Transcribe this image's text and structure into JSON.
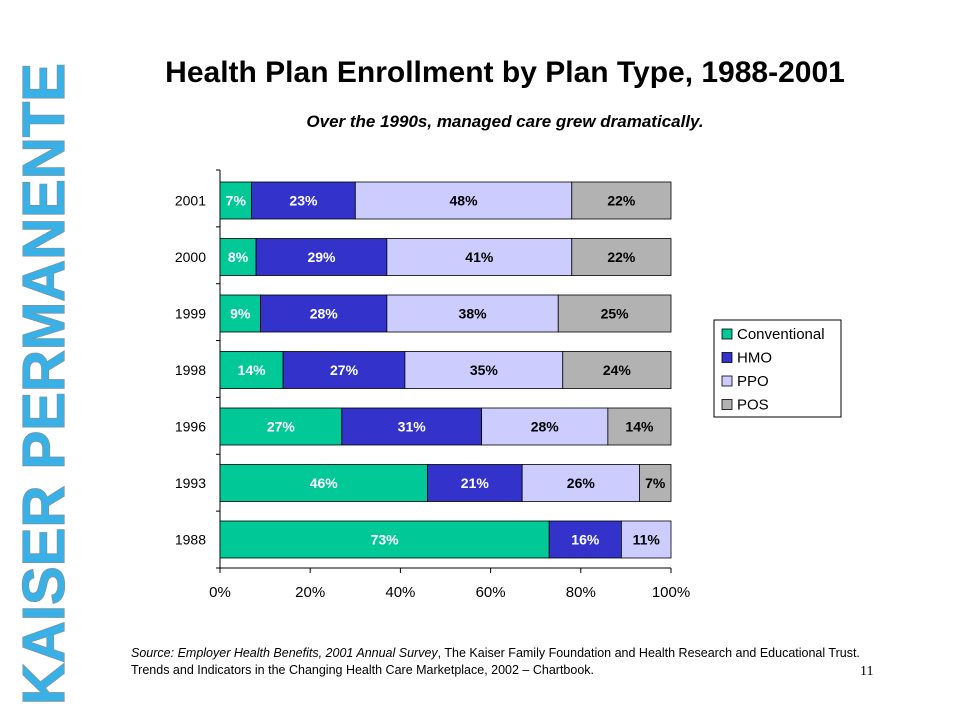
{
  "brand": {
    "text": "KAISER PERMANENTE",
    "color": "#3ab1e6"
  },
  "chart_data": {
    "type": "bar",
    "orientation": "horizontal",
    "stacked": true,
    "percent_stacked": true,
    "title": "Health Plan Enrollment by Plan Type, 1988-2001",
    "subtitle": "Over the 1990s, managed care grew dramatically.",
    "categories": [
      "2001",
      "2000",
      "1999",
      "1998",
      "1996",
      "1993",
      "1988"
    ],
    "series": [
      {
        "name": "Conventional",
        "color": "#00c896",
        "values": [
          7,
          8,
          9,
          14,
          27,
          46,
          73
        ],
        "labels": [
          "7%",
          "8%",
          "9%",
          "14%",
          "27%",
          "46%",
          "73%"
        ]
      },
      {
        "name": "HMO",
        "color": "#3333cc",
        "values": [
          23,
          29,
          28,
          27,
          31,
          21,
          16
        ],
        "labels": [
          "23%",
          "29%",
          "28%",
          "27%",
          "31%",
          "21%",
          "16%"
        ]
      },
      {
        "name": "PPO",
        "color": "#ccccff",
        "values": [
          48,
          41,
          38,
          35,
          28,
          26,
          11
        ],
        "labels": [
          "48%",
          "41%",
          "38%",
          "35%",
          "28%",
          "26%",
          "11%"
        ]
      },
      {
        "name": "POS",
        "color": "#b2b2b2",
        "values": [
          22,
          22,
          25,
          24,
          14,
          7,
          0
        ],
        "labels": [
          "22%",
          "22%",
          "25%",
          "24%",
          "14%",
          "7%",
          ""
        ]
      }
    ],
    "xlim": [
      0,
      100
    ],
    "x_ticks": [
      "0%",
      "20%",
      "40%",
      "60%",
      "80%",
      "100%"
    ],
    "grid": false,
    "legend_position": "right"
  },
  "source": {
    "prefix": "Source: ",
    "italic_title": "Employer Health Benefits, 2001 Annual Survey",
    "rest": ", The Kaiser Family Foundation and Health Research and Educational Trust. Trends and Indicators in the Changing Health Care Marketplace, 2002 – Chartbook."
  },
  "page_number": "11"
}
